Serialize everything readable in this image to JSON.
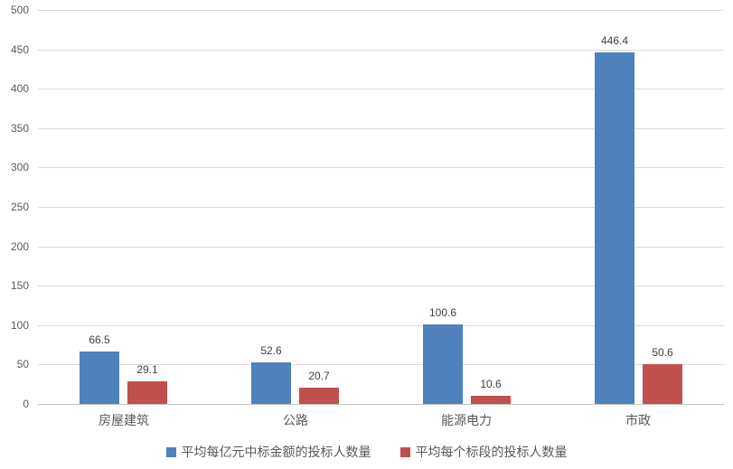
{
  "chart_data": {
    "type": "bar",
    "title": "",
    "xlabel": "",
    "ylabel": "",
    "categories": [
      "房屋建筑",
      "公路",
      "能源电力",
      "市政"
    ],
    "series": [
      {
        "name": "平均每亿元中标金额的投标人数量",
        "color": "#4F81BD",
        "values": [
          66.5,
          52.6,
          100.6,
          446.4
        ]
      },
      {
        "name": "平均每个标段的投标人数量",
        "color": "#C0504D",
        "values": [
          29.1,
          20.7,
          10.6,
          50.6
        ]
      }
    ],
    "ylim": [
      0,
      500
    ],
    "ytick_step": 50,
    "ytick_labels": [
      "0",
      "50",
      "100",
      "150",
      "200",
      "250",
      "300",
      "350",
      "400",
      "450",
      "500"
    ],
    "grid": true,
    "legend_position": "bottom",
    "colors": {
      "background": "#ffffff",
      "gridline": "#dcdcdc",
      "axis_line": "#c3c3c3",
      "tick_text": "#595959",
      "value_label_text": "#404040"
    }
  }
}
